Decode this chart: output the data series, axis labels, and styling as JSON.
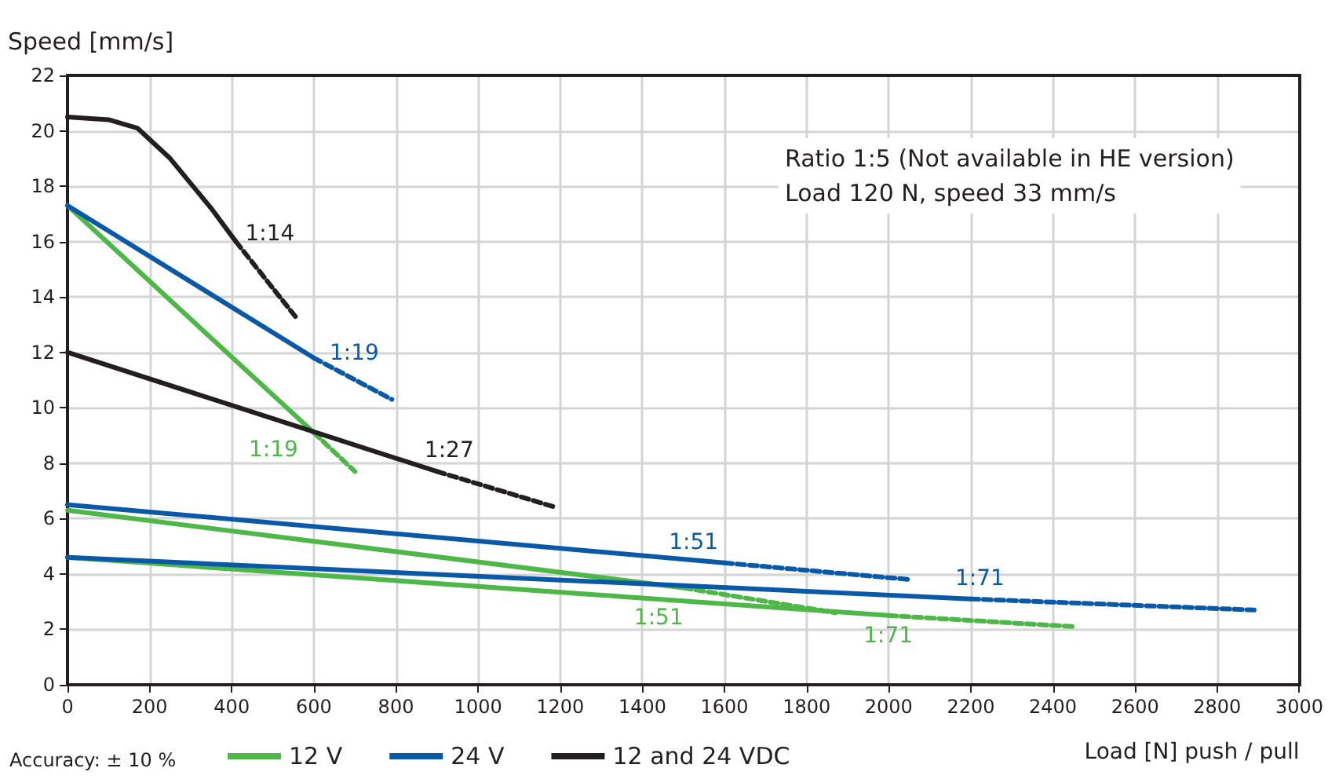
{
  "chart_data": {
    "type": "line",
    "xlabel": "Load [N] push / pull",
    "ylabel": "Speed [mm/s]",
    "xlim": [
      0,
      3000
    ],
    "xticks": [
      0,
      200,
      400,
      600,
      800,
      1000,
      1200,
      1400,
      1600,
      1800,
      2000,
      2200,
      2400,
      2600,
      2800,
      3000
    ],
    "ylim": [
      0,
      22
    ],
    "yticks": [
      0,
      2,
      4,
      6,
      8,
      10,
      12,
      14,
      16,
      18,
      20,
      22
    ],
    "grid": true,
    "legend": "bottom",
    "marker": "none",
    "series": [
      {
        "name": "12 V",
        "color": "#4db848",
        "line_style": "solid",
        "x": [
          0,
          600
        ],
        "values": [
          17.3,
          9.1
        ]
      },
      {
        "color": "#4db848",
        "line_style": "dashed",
        "x": [
          600,
          700
        ],
        "values": [
          9.1,
          7.7
        ]
      },
      {
        "color": "#4db848",
        "line_style": "solid",
        "x": [
          0,
          1500
        ],
        "values": [
          6.3,
          3.5
        ]
      },
      {
        "color": "#4db848",
        "line_style": "dashed",
        "x": [
          1500,
          1870
        ],
        "values": [
          3.5,
          2.6
        ]
      },
      {
        "color": "#4db848",
        "line_style": "solid",
        "x": [
          0,
          2000
        ],
        "values": [
          4.6,
          2.5
        ]
      },
      {
        "color": "#4db848",
        "line_style": "dashed",
        "x": [
          2000,
          2450
        ],
        "values": [
          2.5,
          2.1
        ]
      },
      {
        "name": "24 V",
        "color": "#0a59a8",
        "line_style": "solid",
        "x": [
          0,
          600
        ],
        "values": [
          17.3,
          11.8
        ]
      },
      {
        "color": "#0a59a8",
        "line_style": "dashed",
        "x": [
          600,
          790
        ],
        "values": [
          11.8,
          10.3
        ]
      },
      {
        "color": "#0a59a8",
        "line_style": "solid",
        "x": [
          0,
          1600
        ],
        "values": [
          6.5,
          4.4
        ]
      },
      {
        "color": "#0a59a8",
        "line_style": "dashed",
        "x": [
          1600,
          2050
        ],
        "values": [
          4.4,
          3.8
        ]
      },
      {
        "color": "#0a59a8",
        "line_style": "solid",
        "x": [
          0,
          2200
        ],
        "values": [
          4.6,
          3.1
        ]
      },
      {
        "color": "#0a59a8",
        "line_style": "dashed",
        "x": [
          2200,
          2890
        ],
        "values": [
          3.1,
          2.7
        ]
      },
      {
        "name": "12 and 24 VDC",
        "color": "#231f20",
        "line_style": "solid",
        "x": [
          0,
          100,
          170,
          250,
          350,
          410
        ],
        "values": [
          20.5,
          20.4,
          20.1,
          19,
          17.2,
          16
        ]
      },
      {
        "color": "#231f20",
        "line_style": "dashed",
        "x": [
          410,
          560
        ],
        "values": [
          16,
          13.2
        ]
      },
      {
        "color": "#231f20",
        "line_style": "solid",
        "x": [
          0,
          900
        ],
        "values": [
          12,
          7.7
        ]
      },
      {
        "color": "#231f20",
        "line_style": "dashed",
        "x": [
          900,
          1190
        ],
        "values": [
          7.7,
          6.4
        ]
      }
    ],
    "annotations": [
      {
        "text": "1:14",
        "x": 410,
        "y": 16
      },
      {
        "text": "1:19",
        "x": 600,
        "y": 11.8
      },
      {
        "text": "1:19",
        "x": 600,
        "y": 9.1
      },
      {
        "text": "1:27",
        "x": 900,
        "y": 7.7
      },
      {
        "text": "1:51",
        "x": 1600,
        "y": 4.4
      },
      {
        "text": "1:51",
        "x": 1500,
        "y": 3.5
      },
      {
        "text": "1:71",
        "x": 2200,
        "y": 3.1
      },
      {
        "text": "1:71",
        "x": 2000,
        "y": 2.5
      },
      "Ratio 1:5 (Not available in HE version)\nLoad 120 N, speed 33 mm/s",
      "Accuracy: ± 10 %"
    ]
  }
}
